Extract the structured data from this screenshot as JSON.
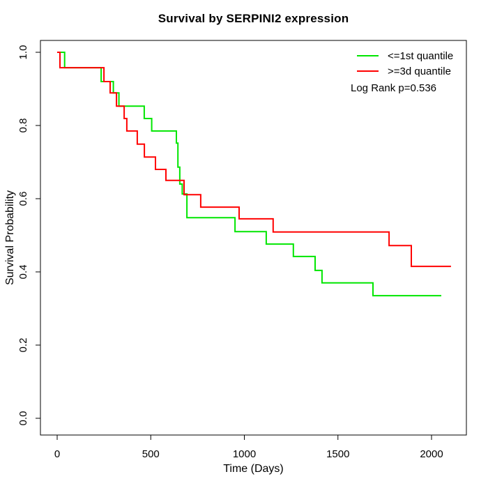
{
  "title": "Survival by SERPINI2 expression",
  "axes": {
    "x": {
      "label": "Time (Days)",
      "ticks": [
        0,
        500,
        1000,
        1500,
        2000
      ]
    },
    "y": {
      "label": "Survival Probability",
      "ticks": [
        "0.0",
        "0.2",
        "0.4",
        "0.6",
        "0.8",
        "1.0"
      ]
    }
  },
  "legend": {
    "items": [
      {
        "label": "<=1st quantile",
        "color": "#00e600"
      },
      {
        "label": ">=3d quantile",
        "color": "#ff0000"
      }
    ],
    "note": "Log Rank p=0.536"
  },
  "chart_data": {
    "type": "line",
    "subtype": "kaplan-meier-step",
    "title": "Survival by SERPINI2 expression",
    "xlabel": "Time (Days)",
    "ylabel": "Survival Probability",
    "xlim": [
      0,
      2190
    ],
    "ylim": [
      0.0,
      1.0
    ],
    "grid": false,
    "legend_position": "top-right",
    "annotation": "Log Rank p=0.536",
    "series": [
      {
        "name": "<=1st quantile",
        "color": "#00e600",
        "steps": [
          [
            0,
            1.0
          ],
          [
            40,
            0.958
          ],
          [
            235,
            0.92
          ],
          [
            300,
            0.889
          ],
          [
            330,
            0.853
          ],
          [
            465,
            0.819
          ],
          [
            505,
            0.785
          ],
          [
            637,
            0.752
          ],
          [
            645,
            0.686
          ],
          [
            655,
            0.64
          ],
          [
            668,
            0.613
          ],
          [
            693,
            0.548
          ],
          [
            950,
            0.51
          ],
          [
            1117,
            0.476
          ],
          [
            1262,
            0.442
          ],
          [
            1378,
            0.404
          ],
          [
            1415,
            0.37
          ],
          [
            1687,
            0.335
          ]
        ],
        "end_time": 2052
      },
      {
        "name": ">=3d quantile",
        "color": "#ff0000",
        "steps": [
          [
            0,
            1.0
          ],
          [
            15,
            0.958
          ],
          [
            250,
            0.92
          ],
          [
            283,
            0.889
          ],
          [
            317,
            0.853
          ],
          [
            358,
            0.819
          ],
          [
            372,
            0.785
          ],
          [
            428,
            0.749
          ],
          [
            466,
            0.714
          ],
          [
            525,
            0.68
          ],
          [
            581,
            0.65
          ],
          [
            678,
            0.611
          ],
          [
            767,
            0.577
          ],
          [
            972,
            0.545
          ],
          [
            1154,
            0.509
          ],
          [
            1773,
            0.472
          ],
          [
            1892,
            0.415
          ]
        ],
        "end_time": 2104
      }
    ]
  }
}
